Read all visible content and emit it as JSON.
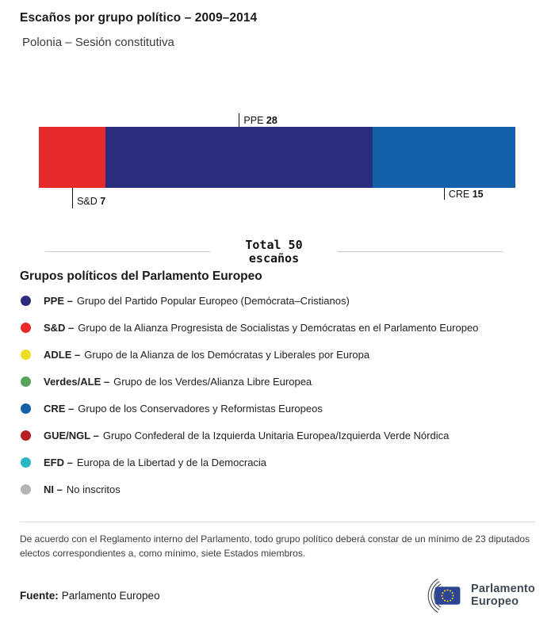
{
  "header": {
    "title": "Escaños por grupo político – 2009–2014",
    "subtitle": "Polonia – Sesión constitutiva"
  },
  "chart_data": {
    "type": "bar",
    "variant": "stacked-horizontal-single-bar",
    "title": "Escaños por grupo político – 2009–2014",
    "subtitle": "Polonia – Sesión constitutiva",
    "total_seats": 50,
    "total_label_line1": "Total 50",
    "total_label_line2": "escaños",
    "series": [
      {
        "name": "S&D",
        "value": 7,
        "color": "#e62a2a",
        "label_position": "below-low"
      },
      {
        "name": "PPE",
        "value": 28,
        "color": "#292d7c",
        "label_position": "above"
      },
      {
        "name": "CRE",
        "value": 15,
        "color": "#1561a9",
        "label_position": "below"
      }
    ]
  },
  "legend": {
    "heading": "Grupos políticos del Parlamento Europeo",
    "separator": "–",
    "items": [
      {
        "abbr": "PPE",
        "desc": "Grupo del Partido Popular Europeo (Demócrata–Cristianos)",
        "color": "#292d7c"
      },
      {
        "abbr": "S&D",
        "desc": "Grupo de la Alianza Progresista de Socialistas y Demócratas en el Parlamento Europeo",
        "color": "#e62a2a"
      },
      {
        "abbr": "ADLE",
        "desc": "Grupo de la Alianza de los Demócratas y Liberales por Europa",
        "color": "#f0dd25"
      },
      {
        "abbr": "Verdes/ALE",
        "desc": "Grupo de los Verdes/Alianza Libre Europea",
        "color": "#57a55c"
      },
      {
        "abbr": "CRE",
        "desc": "Grupo de los Conservadores y Reformistas Europeos",
        "color": "#1561a9"
      },
      {
        "abbr": "GUE/NGL",
        "desc": "Grupo Confederal de la Izquierda Unitaria Europea/Izquierda Verde Nórdica",
        "color": "#b62020"
      },
      {
        "abbr": "EFD",
        "desc": "Europa de la Libertad y de la Democracia",
        "color": "#2cb6c3"
      },
      {
        "abbr": "NI",
        "desc": "No inscritos",
        "color": "#b5b5b5"
      }
    ]
  },
  "footnote": "De acuerdo con el Reglamento interno del Parlamento, todo grupo político deberá constar de un mínimo de 23 diputados electos correspondientes a, como mínimo, siete Estados miembros.",
  "footer": {
    "source_label": "Fuente:",
    "source_value": "Parlamento Europeo",
    "logo_line1": "Parlamento",
    "logo_line2": "Europeo"
  }
}
